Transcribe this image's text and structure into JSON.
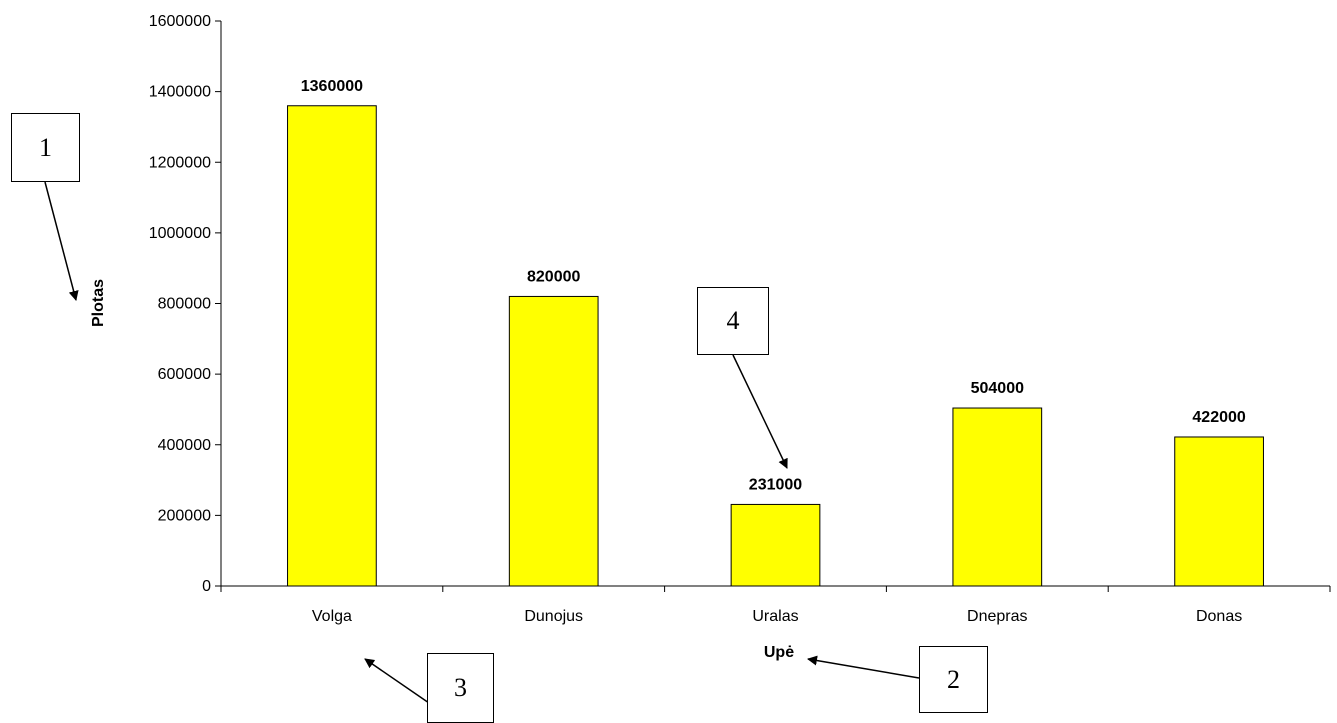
{
  "chart_data": {
    "type": "bar",
    "categories": [
      "Volga",
      "Dunojus",
      "Uralas",
      "Dnepras",
      "Donas"
    ],
    "values": [
      1360000,
      820000,
      231000,
      504000,
      422000
    ],
    "data_labels": [
      "1360000",
      "820000",
      "231000",
      "504000",
      "422000"
    ],
    "xlabel": "Upė",
    "ylabel": "Plotas",
    "ylim": [
      0,
      1600000
    ],
    "yticks": [
      "0",
      "200000",
      "400000",
      "600000",
      "800000",
      "1000000",
      "1200000",
      "1400000",
      "1600000"
    ],
    "grid": false,
    "bar_color": "#FFFF00",
    "bar_edge_color": "#000000"
  },
  "callouts": [
    "1",
    "2",
    "3",
    "4"
  ]
}
